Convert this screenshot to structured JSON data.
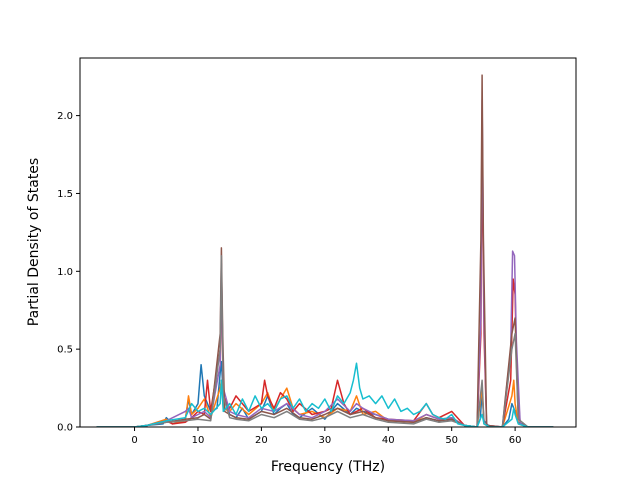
{
  "chart_data": {
    "type": "line",
    "title": "",
    "xlabel": "Frequency (THz)",
    "ylabel": "Partial Density of States",
    "xlim": [
      -8.6,
      69.6
    ],
    "ylim": [
      0,
      2.37
    ],
    "xticks": [
      0,
      10,
      20,
      30,
      40,
      50,
      60
    ],
    "yticks": [
      0.0,
      0.5,
      1.0,
      1.5,
      2.0
    ],
    "xtick_labels": [
      "0",
      "10",
      "20",
      "30",
      "40",
      "50",
      "60"
    ],
    "ytick_labels": [
      "0.0",
      "0.5",
      "1.0",
      "1.5",
      "2.0"
    ],
    "grid": false,
    "legend": "none",
    "series": [
      {
        "color": "#1f77b4",
        "x": [
          -6,
          0,
          2,
          4.5,
          5,
          6,
          8,
          8.5,
          9,
          10,
          10.5,
          11,
          12,
          13,
          13.5,
          13.7,
          14,
          15,
          16,
          17,
          18,
          20,
          21,
          22,
          23,
          24,
          25,
          26,
          28,
          30,
          32,
          34,
          35,
          36,
          38,
          40,
          42,
          44,
          46,
          48,
          50,
          52,
          54,
          54.5,
          54.8,
          55.1,
          56,
          58,
          59,
          59.5,
          60,
          60.5,
          62,
          66
        ],
        "y": [
          0,
          0,
          0.01,
          0.02,
          0.06,
          0.02,
          0.05,
          0.18,
          0.08,
          0.15,
          0.4,
          0.2,
          0.1,
          0.12,
          0.35,
          0.42,
          0.2,
          0.08,
          0.06,
          0.12,
          0.05,
          0.1,
          0.2,
          0.08,
          0.12,
          0.15,
          0.08,
          0.06,
          0.12,
          0.05,
          0.15,
          0.08,
          0.12,
          0.1,
          0.08,
          0.05,
          0.04,
          0.03,
          0.06,
          0.04,
          0.05,
          0.01,
          0,
          0.05,
          0.22,
          0.04,
          0,
          0,
          0.05,
          0.15,
          0.1,
          0.03,
          0,
          0
        ]
      },
      {
        "color": "#ff7f0e",
        "x": [
          -6,
          0,
          2,
          5,
          6,
          8,
          8.5,
          9,
          10,
          11,
          12,
          13.5,
          13.7,
          14,
          15,
          16,
          18,
          20,
          21,
          22,
          23,
          24,
          25,
          26,
          28,
          30,
          32,
          34,
          35,
          36,
          38,
          40,
          44,
          46,
          48,
          50,
          52,
          54,
          54.8,
          55.1,
          56,
          58,
          59.5,
          59.8,
          60,
          60.5,
          62,
          66
        ],
        "y": [
          0,
          0,
          0.01,
          0.05,
          0.02,
          0.04,
          0.2,
          0.08,
          0.12,
          0.18,
          0.06,
          0.25,
          0.3,
          0.12,
          0.1,
          0.15,
          0.08,
          0.15,
          0.22,
          0.1,
          0.18,
          0.25,
          0.12,
          0.08,
          0.1,
          0.06,
          0.12,
          0.1,
          0.2,
          0.08,
          0.1,
          0.04,
          0.03,
          0.08,
          0.05,
          0.06,
          0.01,
          0,
          0.25,
          0.02,
          0,
          0,
          0.2,
          0.3,
          0.15,
          0.02,
          0,
          0
        ]
      },
      {
        "color": "#d62728",
        "x": [
          -6,
          0,
          2,
          5,
          6,
          8,
          9,
          10,
          11,
          11.5,
          12,
          13.5,
          13.7,
          14,
          15,
          16,
          18,
          20,
          20.5,
          21,
          22,
          23,
          24,
          25,
          26,
          28,
          30,
          31,
          32,
          33,
          34,
          35,
          36,
          38,
          40,
          44,
          46,
          47,
          48,
          50,
          52,
          54,
          54.6,
          54.8,
          55.1,
          55.5,
          58,
          59.3,
          59.7,
          60,
          60.3,
          60.8,
          62,
          66
        ],
        "y": [
          0,
          0,
          0.01,
          0.04,
          0.02,
          0.03,
          0.06,
          0.1,
          0.08,
          0.3,
          0.1,
          0.5,
          0.9,
          0.2,
          0.12,
          0.2,
          0.1,
          0.15,
          0.3,
          0.2,
          0.12,
          0.22,
          0.18,
          0.1,
          0.15,
          0.08,
          0.1,
          0.12,
          0.3,
          0.15,
          0.08,
          0.1,
          0.12,
          0.06,
          0.05,
          0.04,
          0.15,
          0.08,
          0.06,
          0.1,
          0.01,
          0,
          0.6,
          1.9,
          0.6,
          0.01,
          0,
          0.3,
          0.95,
          0.85,
          0.3,
          0.02,
          0,
          0
        ]
      },
      {
        "color": "#9467bd",
        "x": [
          -6,
          0,
          2,
          5,
          8,
          8.5,
          9,
          10,
          11,
          12,
          13.5,
          13.7,
          14,
          15,
          16,
          18,
          20,
          22,
          24,
          26,
          28,
          30,
          32,
          34,
          35,
          36,
          38,
          40,
          44,
          46,
          48,
          50,
          52,
          54,
          54.6,
          54.8,
          55.1,
          55.5,
          58,
          59.3,
          59.6,
          59.9,
          60.2,
          60.8,
          62,
          66
        ],
        "y": [
          0,
          0,
          0.01,
          0.04,
          0.1,
          0.12,
          0.06,
          0.08,
          0.1,
          0.06,
          0.4,
          1.05,
          0.25,
          0.1,
          0.08,
          0.06,
          0.12,
          0.1,
          0.15,
          0.08,
          0.06,
          0.1,
          0.18,
          0.1,
          0.15,
          0.12,
          0.08,
          0.05,
          0.04,
          0.08,
          0.05,
          0.06,
          0.01,
          0,
          0.7,
          2.1,
          0.7,
          0.01,
          0,
          0.5,
          1.13,
          1.1,
          0.55,
          0.02,
          0,
          0
        ]
      },
      {
        "color": "#8c564b",
        "x": [
          -6,
          0,
          2,
          5,
          8,
          10,
          11,
          12,
          13.5,
          13.7,
          13.9,
          14.2,
          15,
          16,
          18,
          20,
          22,
          24,
          26,
          28,
          30,
          32,
          34,
          36,
          38,
          40,
          44,
          46,
          48,
          50,
          52,
          54,
          54.6,
          54.8,
          55,
          55.5,
          58,
          59.5,
          60,
          60.5,
          62,
          66
        ],
        "y": [
          0,
          0,
          0.01,
          0.03,
          0.05,
          0.06,
          0.08,
          0.05,
          0.6,
          1.15,
          0.6,
          0.1,
          0.08,
          0.06,
          0.05,
          0.1,
          0.08,
          0.12,
          0.06,
          0.05,
          0.08,
          0.12,
          0.08,
          0.1,
          0.06,
          0.04,
          0.03,
          0.06,
          0.04,
          0.05,
          0.01,
          0,
          1.2,
          2.26,
          1.2,
          0.01,
          0,
          0.6,
          0.7,
          0.05,
          0,
          0
        ]
      },
      {
        "color": "#7f7f7f",
        "x": [
          -6,
          0,
          2,
          5,
          8,
          10,
          12,
          13.5,
          13.7,
          14,
          15,
          16,
          18,
          20,
          22,
          24,
          26,
          28,
          30,
          32,
          34,
          36,
          38,
          40,
          44,
          46,
          48,
          50,
          52,
          54,
          54.8,
          55.1,
          56,
          58,
          59.5,
          60,
          60.5,
          62,
          66
        ],
        "y": [
          0,
          0,
          0.01,
          0.03,
          0.04,
          0.05,
          0.04,
          0.5,
          1.1,
          0.2,
          0.06,
          0.05,
          0.04,
          0.08,
          0.06,
          0.1,
          0.05,
          0.04,
          0.06,
          0.1,
          0.06,
          0.08,
          0.05,
          0.03,
          0.02,
          0.05,
          0.03,
          0.04,
          0.01,
          0,
          0.3,
          0.02,
          0,
          0,
          0.5,
          0.6,
          0.05,
          0,
          0
        ]
      },
      {
        "color": "#17becf",
        "x": [
          -6,
          0,
          2,
          5,
          8,
          9,
          10,
          11,
          12,
          13.5,
          13.7,
          14,
          15,
          16,
          17,
          18,
          19,
          20,
          21,
          22,
          23,
          24,
          25,
          26,
          27,
          28,
          29,
          30,
          31,
          32,
          33,
          34,
          34.5,
          35,
          35.5,
          36,
          37,
          38,
          39,
          40,
          41,
          42,
          43,
          44,
          45,
          46,
          47,
          48,
          49,
          50,
          51,
          52,
          54,
          54.8,
          55.1,
          56,
          58,
          59.5,
          59.8,
          60,
          60.5,
          62,
          66
        ],
        "y": [
          0,
          0,
          0.01,
          0.04,
          0.06,
          0.15,
          0.1,
          0.12,
          0.08,
          0.15,
          0.3,
          0.1,
          0.15,
          0.08,
          0.18,
          0.1,
          0.2,
          0.12,
          0.15,
          0.1,
          0.18,
          0.2,
          0.12,
          0.18,
          0.1,
          0.15,
          0.12,
          0.18,
          0.1,
          0.2,
          0.15,
          0.22,
          0.3,
          0.41,
          0.25,
          0.18,
          0.2,
          0.15,
          0.2,
          0.12,
          0.18,
          0.1,
          0.12,
          0.08,
          0.1,
          0.15,
          0.08,
          0.06,
          0.05,
          0.08,
          0.02,
          0.01,
          0,
          0.08,
          0.02,
          0,
          0,
          0.05,
          0.12,
          0.08,
          0.02,
          0,
          0
        ]
      }
    ]
  }
}
